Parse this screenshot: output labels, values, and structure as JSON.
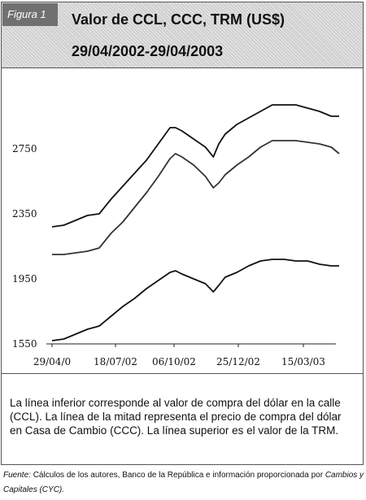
{
  "header": {
    "badge": "Figura 1",
    "title_line1": "Valor de CCL, CCC, TRM (US$)",
    "title_line2": "29/04/2002-29/04/2003"
  },
  "chart_data": {
    "type": "line",
    "ylim": [
      1550,
      3150
    ],
    "yticks": [
      1550,
      1950,
      2350,
      2750
    ],
    "ytick_labels": [
      "1550",
      "1950",
      "2350",
      "2750"
    ],
    "xtick_labels": [
      "29/04/0",
      "18/07/02",
      "06/10/02",
      "25/12/02",
      "15/03/03"
    ],
    "x_days": [
      0,
      15,
      30,
      45,
      60,
      75,
      90,
      105,
      120,
      135,
      150,
      157,
      165,
      180,
      195,
      205,
      212,
      220,
      235,
      250,
      265,
      280,
      295,
      310,
      325,
      340,
      355,
      365
    ],
    "series": [
      {
        "name": "TRM",
        "color": "#111111",
        "values": [
          2270,
          2280,
          2310,
          2340,
          2350,
          2440,
          2520,
          2600,
          2680,
          2780,
          2880,
          2880,
          2860,
          2810,
          2760,
          2700,
          2780,
          2840,
          2900,
          2940,
          2980,
          3020,
          3020,
          3020,
          3000,
          2980,
          2950,
          2950
        ]
      },
      {
        "name": "CCC",
        "color": "#333333",
        "values": [
          2100,
          2100,
          2110,
          2120,
          2140,
          2230,
          2300,
          2390,
          2480,
          2580,
          2690,
          2720,
          2700,
          2650,
          2580,
          2510,
          2540,
          2590,
          2650,
          2700,
          2760,
          2800,
          2800,
          2800,
          2790,
          2780,
          2760,
          2720
        ]
      },
      {
        "name": "CCL",
        "color": "#111111",
        "values": [
          1570,
          1580,
          1610,
          1640,
          1660,
          1720,
          1780,
          1830,
          1890,
          1940,
          1990,
          2000,
          1980,
          1950,
          1920,
          1870,
          1910,
          1960,
          1990,
          2030,
          2060,
          2070,
          2070,
          2060,
          2060,
          2040,
          2030,
          2030
        ]
      }
    ]
  },
  "caption": "La línea inferior corresponde al valor de compra del dólar en la calle (CCL). La línea de la mitad representa el precio de compra del dólar en Casa de Cambio (CCC). La línea superior es el valor de la TRM.",
  "source": {
    "lead": "Fuente:",
    "text_plain": " Cálculos de los autores, Banco de la República e información proporcionada por ",
    "text_italic": "Cambios y Capitales (CYC)."
  }
}
